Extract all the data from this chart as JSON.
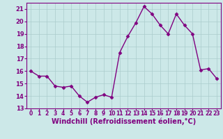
{
  "x": [
    0,
    1,
    2,
    3,
    4,
    5,
    6,
    7,
    8,
    9,
    10,
    11,
    12,
    13,
    14,
    15,
    16,
    17,
    18,
    19,
    20,
    21,
    22,
    23
  ],
  "y": [
    16.0,
    15.6,
    15.6,
    14.8,
    14.7,
    14.8,
    14.0,
    13.5,
    13.9,
    14.1,
    13.9,
    17.5,
    18.8,
    19.9,
    21.2,
    20.6,
    19.7,
    19.0,
    20.6,
    19.7,
    19.0,
    16.1,
    16.2,
    15.4
  ],
  "line_color": "#800080",
  "marker": "D",
  "marker_size": 2.5,
  "background_color": "#cce8e8",
  "grid_color": "#aacccc",
  "xlabel": "Windchill (Refroidissement éolien,°C)",
  "xlim": [
    -0.5,
    23.5
  ],
  "ylim": [
    13,
    21.5
  ],
  "yticks": [
    13,
    14,
    15,
    16,
    17,
    18,
    19,
    20,
    21
  ],
  "xticks": [
    0,
    1,
    2,
    3,
    4,
    5,
    6,
    7,
    8,
    9,
    10,
    11,
    12,
    13,
    14,
    15,
    16,
    17,
    18,
    19,
    20,
    21,
    22,
    23
  ],
  "tick_color": "#800080",
  "label_color": "#800080",
  "spine_color": "#800080",
  "font_size_ticks": 5.5,
  "font_size_xlabel": 7.0,
  "linewidth": 1.0
}
